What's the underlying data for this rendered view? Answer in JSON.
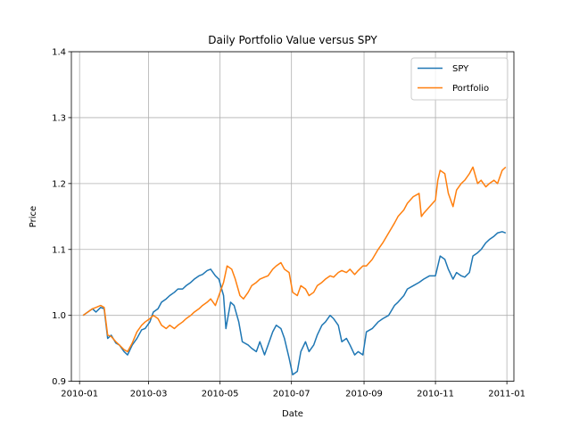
{
  "chart_data": {
    "type": "line",
    "title": "Daily Portfolio Value versus SPY",
    "xlabel": "Date",
    "ylabel": "Price",
    "xlim": [
      "2009-12-25",
      "2011-01-07"
    ],
    "ylim": [
      0.9,
      1.4
    ],
    "x_ticks": [
      "2010-01-01",
      "2010-03-01",
      "2010-05-01",
      "2010-07-01",
      "2010-09-01",
      "2010-11-01",
      "2011-01-01"
    ],
    "x_tick_labels": [
      "2010-01",
      "2010-03",
      "2010-05",
      "2010-07",
      "2010-09",
      "2010-11",
      "2011-01"
    ],
    "y_ticks": [
      0.9,
      1.0,
      1.1,
      1.2,
      1.3,
      1.4
    ],
    "y_tick_labels": [
      "0.9",
      "1.0",
      "1.1",
      "1.2",
      "1.3",
      "1.4"
    ],
    "grid": true,
    "legend_position": "top-right",
    "series": [
      {
        "name": "SPY",
        "color": "#1f77b4",
        "points": [
          [
            "2010-01-04",
            1.0
          ],
          [
            "2010-01-08",
            1.005
          ],
          [
            "2010-01-12",
            1.01
          ],
          [
            "2010-01-15",
            1.005
          ],
          [
            "2010-01-19",
            1.012
          ],
          [
            "2010-01-22",
            1.01
          ],
          [
            "2010-01-25",
            0.965
          ],
          [
            "2010-01-28",
            0.97
          ],
          [
            "2010-02-01",
            0.958
          ],
          [
            "2010-02-04",
            0.955
          ],
          [
            "2010-02-08",
            0.945
          ],
          [
            "2010-02-11",
            0.94
          ],
          [
            "2010-02-15",
            0.955
          ],
          [
            "2010-02-19",
            0.965
          ],
          [
            "2010-02-23",
            0.978
          ],
          [
            "2010-02-26",
            0.98
          ],
          [
            "2010-03-02",
            0.99
          ],
          [
            "2010-03-05",
            1.005
          ],
          [
            "2010-03-09",
            1.01
          ],
          [
            "2010-03-12",
            1.02
          ],
          [
            "2010-03-16",
            1.025
          ],
          [
            "2010-03-19",
            1.03
          ],
          [
            "2010-03-23",
            1.035
          ],
          [
            "2010-03-26",
            1.04
          ],
          [
            "2010-03-30",
            1.04
          ],
          [
            "2010-04-02",
            1.045
          ],
          [
            "2010-04-06",
            1.05
          ],
          [
            "2010-04-09",
            1.055
          ],
          [
            "2010-04-13",
            1.06
          ],
          [
            "2010-04-16",
            1.062
          ],
          [
            "2010-04-20",
            1.068
          ],
          [
            "2010-04-23",
            1.07
          ],
          [
            "2010-04-27",
            1.06
          ],
          [
            "2010-04-30",
            1.055
          ],
          [
            "2010-05-04",
            1.03
          ],
          [
            "2010-05-06",
            0.98
          ],
          [
            "2010-05-10",
            1.02
          ],
          [
            "2010-05-13",
            1.015
          ],
          [
            "2010-05-17",
            0.99
          ],
          [
            "2010-05-20",
            0.96
          ],
          [
            "2010-05-25",
            0.955
          ],
          [
            "2010-05-28",
            0.95
          ],
          [
            "2010-06-01",
            0.945
          ],
          [
            "2010-06-04",
            0.96
          ],
          [
            "2010-06-08",
            0.94
          ],
          [
            "2010-06-11",
            0.955
          ],
          [
            "2010-06-15",
            0.975
          ],
          [
            "2010-06-18",
            0.985
          ],
          [
            "2010-06-22",
            0.98
          ],
          [
            "2010-06-25",
            0.965
          ],
          [
            "2010-06-29",
            0.935
          ],
          [
            "2010-07-02",
            0.91
          ],
          [
            "2010-07-06",
            0.915
          ],
          [
            "2010-07-09",
            0.945
          ],
          [
            "2010-07-13",
            0.96
          ],
          [
            "2010-07-16",
            0.945
          ],
          [
            "2010-07-20",
            0.955
          ],
          [
            "2010-07-23",
            0.97
          ],
          [
            "2010-07-27",
            0.985
          ],
          [
            "2010-07-30",
            0.99
          ],
          [
            "2010-08-03",
            1.0
          ],
          [
            "2010-08-06",
            0.995
          ],
          [
            "2010-08-10",
            0.985
          ],
          [
            "2010-08-13",
            0.96
          ],
          [
            "2010-08-17",
            0.965
          ],
          [
            "2010-08-20",
            0.955
          ],
          [
            "2010-08-24",
            0.94
          ],
          [
            "2010-08-27",
            0.945
          ],
          [
            "2010-08-31",
            0.94
          ],
          [
            "2010-09-03",
            0.975
          ],
          [
            "2010-09-08",
            0.98
          ],
          [
            "2010-09-13",
            0.99
          ],
          [
            "2010-09-17",
            0.995
          ],
          [
            "2010-09-22",
            1.0
          ],
          [
            "2010-09-27",
            1.015
          ],
          [
            "2010-09-30",
            1.02
          ],
          [
            "2010-10-05",
            1.03
          ],
          [
            "2010-10-08",
            1.04
          ],
          [
            "2010-10-13",
            1.045
          ],
          [
            "2010-10-18",
            1.05
          ],
          [
            "2010-10-22",
            1.055
          ],
          [
            "2010-10-27",
            1.06
          ],
          [
            "2010-11-01",
            1.06
          ],
          [
            "2010-11-05",
            1.09
          ],
          [
            "2010-11-09",
            1.085
          ],
          [
            "2010-11-12",
            1.07
          ],
          [
            "2010-11-16",
            1.055
          ],
          [
            "2010-11-19",
            1.065
          ],
          [
            "2010-11-23",
            1.06
          ],
          [
            "2010-11-26",
            1.058
          ],
          [
            "2010-11-30",
            1.065
          ],
          [
            "2010-12-03",
            1.09
          ],
          [
            "2010-12-07",
            1.095
          ],
          [
            "2010-12-10",
            1.1
          ],
          [
            "2010-12-14",
            1.11
          ],
          [
            "2010-12-17",
            1.115
          ],
          [
            "2010-12-21",
            1.12
          ],
          [
            "2010-12-24",
            1.125
          ],
          [
            "2010-12-28",
            1.127
          ],
          [
            "2010-12-31",
            1.125
          ]
        ]
      },
      {
        "name": "Portfolio",
        "color": "#ff7f0e",
        "points": [
          [
            "2010-01-04",
            1.0
          ],
          [
            "2010-01-08",
            1.005
          ],
          [
            "2010-01-12",
            1.01
          ],
          [
            "2010-01-15",
            1.012
          ],
          [
            "2010-01-19",
            1.015
          ],
          [
            "2010-01-22",
            1.012
          ],
          [
            "2010-01-25",
            0.97
          ],
          [
            "2010-01-28",
            0.968
          ],
          [
            "2010-02-01",
            0.96
          ],
          [
            "2010-02-04",
            0.955
          ],
          [
            "2010-02-08",
            0.948
          ],
          [
            "2010-02-11",
            0.945
          ],
          [
            "2010-02-15",
            0.958
          ],
          [
            "2010-02-19",
            0.975
          ],
          [
            "2010-02-23",
            0.985
          ],
          [
            "2010-02-26",
            0.99
          ],
          [
            "2010-03-02",
            0.995
          ],
          [
            "2010-03-05",
            1.0
          ],
          [
            "2010-03-09",
            0.995
          ],
          [
            "2010-03-12",
            0.985
          ],
          [
            "2010-03-16",
            0.98
          ],
          [
            "2010-03-19",
            0.985
          ],
          [
            "2010-03-23",
            0.98
          ],
          [
            "2010-03-26",
            0.985
          ],
          [
            "2010-03-30",
            0.99
          ],
          [
            "2010-04-02",
            0.995
          ],
          [
            "2010-04-06",
            1.0
          ],
          [
            "2010-04-09",
            1.005
          ],
          [
            "2010-04-13",
            1.01
          ],
          [
            "2010-04-16",
            1.015
          ],
          [
            "2010-04-20",
            1.02
          ],
          [
            "2010-04-23",
            1.025
          ],
          [
            "2010-04-27",
            1.015
          ],
          [
            "2010-04-30",
            1.03
          ],
          [
            "2010-05-04",
            1.05
          ],
          [
            "2010-05-07",
            1.075
          ],
          [
            "2010-05-11",
            1.07
          ],
          [
            "2010-05-14",
            1.055
          ],
          [
            "2010-05-18",
            1.03
          ],
          [
            "2010-05-21",
            1.025
          ],
          [
            "2010-05-25",
            1.035
          ],
          [
            "2010-05-28",
            1.045
          ],
          [
            "2010-06-01",
            1.05
          ],
          [
            "2010-06-04",
            1.055
          ],
          [
            "2010-06-08",
            1.058
          ],
          [
            "2010-06-11",
            1.06
          ],
          [
            "2010-06-15",
            1.07
          ],
          [
            "2010-06-18",
            1.075
          ],
          [
            "2010-06-22",
            1.08
          ],
          [
            "2010-06-25",
            1.07
          ],
          [
            "2010-06-29",
            1.065
          ],
          [
            "2010-07-02",
            1.035
          ],
          [
            "2010-07-06",
            1.03
          ],
          [
            "2010-07-09",
            1.045
          ],
          [
            "2010-07-13",
            1.04
          ],
          [
            "2010-07-16",
            1.03
          ],
          [
            "2010-07-20",
            1.035
          ],
          [
            "2010-07-23",
            1.045
          ],
          [
            "2010-07-27",
            1.05
          ],
          [
            "2010-07-30",
            1.055
          ],
          [
            "2010-08-03",
            1.06
          ],
          [
            "2010-08-06",
            1.058
          ],
          [
            "2010-08-10",
            1.065
          ],
          [
            "2010-08-13",
            1.068
          ],
          [
            "2010-08-17",
            1.065
          ],
          [
            "2010-08-20",
            1.07
          ],
          [
            "2010-08-24",
            1.062
          ],
          [
            "2010-08-27",
            1.068
          ],
          [
            "2010-08-31",
            1.075
          ],
          [
            "2010-09-03",
            1.075
          ],
          [
            "2010-09-08",
            1.085
          ],
          [
            "2010-09-13",
            1.1
          ],
          [
            "2010-09-17",
            1.11
          ],
          [
            "2010-09-22",
            1.125
          ],
          [
            "2010-09-27",
            1.14
          ],
          [
            "2010-09-30",
            1.15
          ],
          [
            "2010-10-05",
            1.16
          ],
          [
            "2010-10-08",
            1.17
          ],
          [
            "2010-10-13",
            1.18
          ],
          [
            "2010-10-18",
            1.185
          ],
          [
            "2010-10-20",
            1.15
          ],
          [
            "2010-10-22",
            1.155
          ],
          [
            "2010-10-27",
            1.165
          ],
          [
            "2010-11-01",
            1.175
          ],
          [
            "2010-11-03",
            1.205
          ],
          [
            "2010-11-05",
            1.22
          ],
          [
            "2010-11-09",
            1.215
          ],
          [
            "2010-11-12",
            1.185
          ],
          [
            "2010-11-16",
            1.165
          ],
          [
            "2010-11-19",
            1.19
          ],
          [
            "2010-11-23",
            1.2
          ],
          [
            "2010-11-26",
            1.205
          ],
          [
            "2010-11-30",
            1.215
          ],
          [
            "2010-12-03",
            1.225
          ],
          [
            "2010-12-07",
            1.2
          ],
          [
            "2010-12-10",
            1.205
          ],
          [
            "2010-12-14",
            1.195
          ],
          [
            "2010-12-17",
            1.2
          ],
          [
            "2010-12-21",
            1.205
          ],
          [
            "2010-12-24",
            1.2
          ],
          [
            "2010-12-28",
            1.22
          ],
          [
            "2010-12-31",
            1.225
          ]
        ]
      }
    ]
  }
}
